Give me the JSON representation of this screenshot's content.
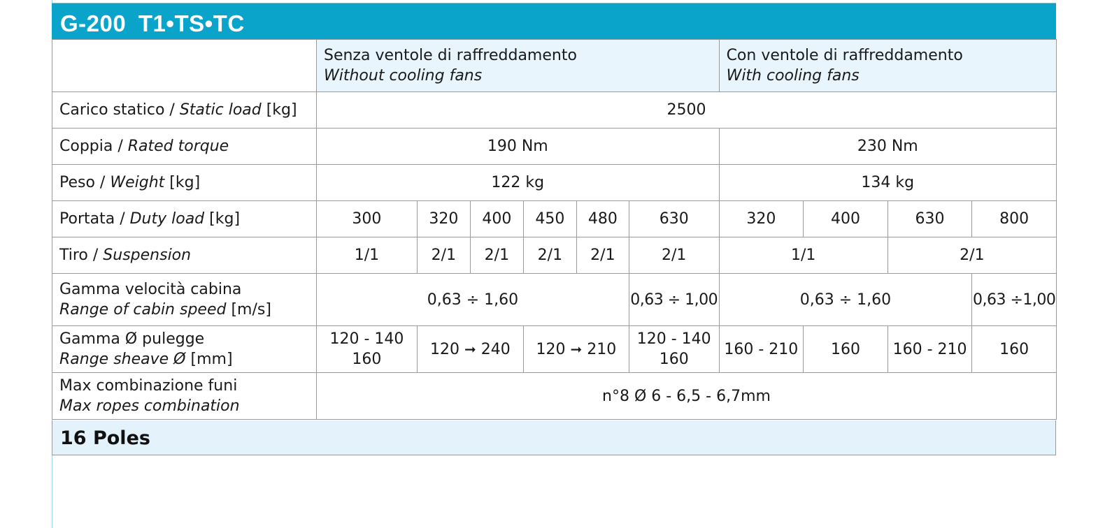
{
  "header": {
    "title": "G-200  T1•TS•TC"
  },
  "columns": {
    "without_fans": {
      "it": "Senza ventole di raffreddamento",
      "en": "Without cooling fans"
    },
    "with_fans": {
      "it": "Con ventole di raffreddamento",
      "en": "With cooling fans"
    }
  },
  "rows": {
    "static_load": {
      "it": "Carico statico / ",
      "en": "Static load",
      "unit": " [kg]",
      "value": "2500"
    },
    "torque": {
      "it": "Coppia / ",
      "en": "Rated torque",
      "v1": "190 Nm",
      "v2": "230 Nm"
    },
    "weight": {
      "it": "Peso / ",
      "en": "Weight",
      "unit": " [kg]",
      "v1": "122 kg",
      "v2": "134 kg"
    },
    "duty": {
      "it": "Portata / ",
      "en": "Duty load",
      "unit": " [kg]",
      "values": [
        "300",
        "320",
        "400",
        "450",
        "480",
        "630",
        "320",
        "400",
        "630",
        "800"
      ]
    },
    "suspension": {
      "it": "Tiro / ",
      "en": "Suspension",
      "values": [
        "1/1",
        "2/1",
        "2/1",
        "2/1",
        "2/1",
        "2/1",
        "1/1",
        "2/1"
      ]
    },
    "speed": {
      "it": "Gamma velocità cabina",
      "en": "Range of cabin speed",
      "unit": " [m/s]",
      "values": [
        "0,63 ÷ 1,60",
        "0,63 ÷ 1,00",
        "0,63 ÷ 1,60",
        "0,63 ÷1,00"
      ]
    },
    "sheave": {
      "it": "Gamma Ø pulegge",
      "en": "Range sheave Ø",
      "unit": " [mm]",
      "c1a": "120 - 140",
      "c1b": "160",
      "c2a": "120",
      "c2b": "240",
      "c3a": "120",
      "c3b": "210",
      "c4a": "120 - 140",
      "c4b": "160",
      "c5": "160 - 210",
      "c6": "160",
      "c7": "160 - 210",
      "c8": "160",
      "arrow": "➞"
    },
    "ropes": {
      "it": "Max combinazione funi",
      "en": "Max ropes combination",
      "value": "n°8 Ø 6 - 6,5 - 6,7mm"
    }
  },
  "footer": {
    "label": "16 Poles"
  }
}
